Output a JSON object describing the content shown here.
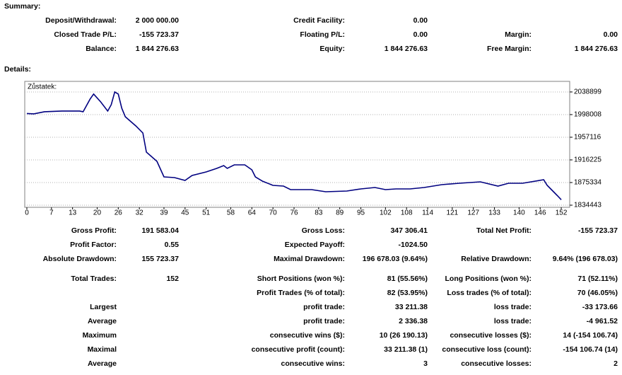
{
  "summary": {
    "title": "Summary:",
    "rows": [
      [
        "Deposit/Withdrawal:",
        "2 000 000.00",
        "Credit Facility:",
        "0.00",
        null,
        null
      ],
      [
        "Closed Trade P/L:",
        "-155 723.37",
        "Floating P/L:",
        "0.00",
        "Margin:",
        "0.00"
      ],
      [
        "Balance:",
        "1 844 276.63",
        "Equity:",
        "1 844 276.63",
        "Free Margin:",
        "1 844 276.63"
      ]
    ]
  },
  "details_title": "Details:",
  "chart_data": {
    "type": "line",
    "label": "Zůstatek:",
    "x": [
      0,
      2,
      5,
      10,
      15,
      16,
      18,
      19,
      21,
      23,
      24,
      25,
      26,
      27,
      28,
      31,
      33,
      34,
      37,
      39,
      42,
      45,
      47,
      51,
      54,
      56,
      57,
      59,
      62,
      64,
      65,
      67,
      70,
      73,
      75,
      77,
      81,
      85,
      91,
      95,
      99,
      102,
      105,
      109,
      113,
      118,
      123,
      129,
      134,
      137,
      141,
      147,
      148,
      150,
      151,
      152
    ],
    "series": [
      {
        "color": "#000080",
        "values": [
          2000000,
          1999281,
          2003115,
          2004393,
          2004393,
          2003115,
          2026119,
          2035065,
          2021007,
          2004393,
          2015895,
          2038899,
          2035065,
          2009505,
          1994169,
          1977555,
          1964775,
          1930269,
          1913655,
          1885539,
          1884261,
          1879149,
          1888095,
          1894485,
          1900875,
          1905987,
          1900875,
          1907265,
          1907265,
          1898319,
          1885539,
          1877871,
          1870203,
          1868925,
          1862535,
          1862535,
          1862535,
          1858701,
          1859979,
          1863813,
          1866369,
          1862535,
          1863813,
          1863813,
          1866369,
          1871481,
          1874037,
          1876593,
          1868925,
          1874037,
          1874037,
          1880427,
          1870203,
          1857423,
          1851033,
          1844276.63
        ]
      }
    ],
    "xlim": [
      -0.6,
      154.4
    ],
    "xticks": [
      0,
      7,
      13,
      20,
      26,
      32,
      39,
      45,
      51,
      58,
      64,
      70,
      76,
      83,
      89,
      95,
      102,
      108,
      114,
      121,
      127,
      133,
      140,
      146,
      152
    ],
    "ylim": [
      1830600,
      2058000
    ],
    "yticks": [
      1834443,
      1875334,
      1916225,
      1957116,
      1998008,
      2038899
    ],
    "grid": true
  },
  "details": {
    "rows": [
      [
        "Gross Profit:",
        "191 583.04",
        "Gross Loss:",
        "347 306.41",
        "Total Net Profit:",
        "-155 723.37"
      ],
      [
        "Profit Factor:",
        "0.55",
        "Expected Payoff:",
        "-1024.50",
        null,
        null
      ],
      [
        "Absolute Drawdown:",
        "155 723.37",
        "Maximal Drawdown:",
        "196 678.03 (9.64%)",
        "Relative Drawdown:",
        "9.64% (196 678.03)"
      ],
      [
        "Total Trades:",
        "152",
        "Short Positions (won %):",
        "81 (55.56%)",
        "Long Positions (won %):",
        "71 (52.11%)"
      ],
      [
        null,
        null,
        "Profit Trades (% of total):",
        "82 (53.95%)",
        "Loss trades (% of total):",
        "70 (46.05%)"
      ],
      [
        "Largest",
        null,
        "profit trade:",
        "33 211.38",
        "loss trade:",
        "-33 173.66"
      ],
      [
        "Average",
        null,
        "profit trade:",
        "2 336.38",
        "loss trade:",
        "-4 961.52"
      ],
      [
        "Maximum",
        null,
        "consecutive wins ($):",
        "10 (26 190.13)",
        "consecutive losses ($):",
        "14 (-154 106.74)"
      ],
      [
        "Maximal",
        null,
        "consecutive profit (count):",
        "33 211.38 (1)",
        "consecutive loss (count):",
        "-154 106.74 (14)"
      ],
      [
        "Average",
        null,
        "consecutive wins:",
        "3",
        "consecutive losses:",
        "2"
      ]
    ]
  }
}
